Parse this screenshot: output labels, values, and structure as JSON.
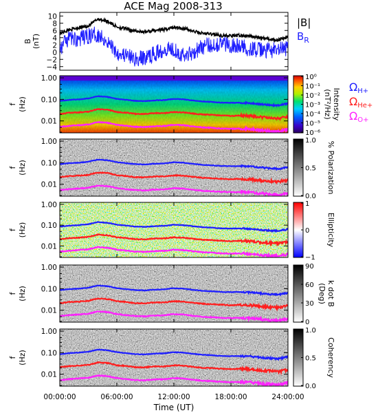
{
  "title": "ACE Mag 2008-313",
  "xlabel": "Time (UT)",
  "x_ticks": [
    "00:00:00",
    "06:00:00",
    "12:00:00",
    "18:00:00",
    "24:00:00"
  ],
  "colors": {
    "h_plus": "#1f1fff",
    "he_plus": "#ff1f1f",
    "o_plus": "#ff22ff",
    "br": "#1f1fff",
    "b_total": "#000000"
  },
  "chart_data": [
    {
      "type": "line",
      "panel": "magnetic field",
      "ylabel": "B",
      "yunit": "(nT)",
      "ylim": [
        -5,
        11
      ],
      "yticks": [
        "10",
        "8",
        "6",
        "4",
        "2",
        "0",
        "−2",
        "−4"
      ],
      "xlim": [
        "00:00",
        "24:00"
      ],
      "series": [
        {
          "name": "|B|",
          "x_hours": [
            0,
            1,
            2,
            3,
            4,
            5,
            6,
            7,
            8,
            9,
            10,
            11,
            12,
            13,
            14,
            15,
            16,
            17,
            18,
            19,
            20,
            21,
            22,
            23,
            24
          ],
          "values": [
            5.2,
            6.2,
            6.8,
            7.2,
            9.2,
            8.6,
            7.0,
            6.4,
            5.8,
            5.6,
            6.0,
            6.2,
            6.9,
            6.6,
            5.8,
            5.2,
            5.0,
            4.6,
            4.5,
            4.6,
            4.4,
            4.0,
            3.6,
            3.4,
            4.2
          ]
        },
        {
          "name": "B_R",
          "x_hours": [
            0,
            1,
            2,
            3,
            4,
            5,
            6,
            7,
            8,
            9,
            10,
            11,
            12,
            13,
            14,
            15,
            16,
            17,
            18,
            19,
            20,
            21,
            22,
            23,
            24
          ],
          "values": [
            1.0,
            4.0,
            3.5,
            4.5,
            5.0,
            3.0,
            0.0,
            -1.0,
            -2.0,
            -1.5,
            -0.5,
            1.0,
            1.0,
            -1.0,
            0.0,
            1.5,
            2.0,
            2.5,
            2.0,
            1.5,
            1.0,
            0.5,
            0.5,
            0.5,
            1.0
          ]
        }
      ]
    },
    {
      "type": "heatmap",
      "panel": "wave power spectrum",
      "ylabel": "f",
      "yunit": "(Hz)",
      "yscale": "log",
      "ylim": [
        0.003,
        1.0
      ],
      "yticks": [
        "1.00",
        "0.10",
        "0.01"
      ],
      "colorbar": {
        "label": "Intensity",
        "unit": "(nT²/Hz)",
        "scale": "log",
        "ticks": [
          "10⁰",
          "10⁻¹",
          "10⁻²",
          "10⁻³",
          "10⁻⁴",
          "10⁻⁵",
          "10⁻⁶"
        ]
      },
      "overlay_labels": [
        "Ω",
        "H+",
        "Ω",
        "He+",
        "Ω",
        "O+"
      ]
    },
    {
      "type": "heatmap",
      "panel": "polarization",
      "ylabel": "f",
      "yunit": "(Hz)",
      "yscale": "log",
      "yticks": [
        "1.00",
        "0.10",
        "0.01"
      ],
      "colorbar": {
        "label": "% Polarization",
        "ticks": [
          "1.0",
          "0.5",
          "0.0"
        ],
        "range": [
          0.0,
          1.0
        ]
      }
    },
    {
      "type": "heatmap",
      "panel": "ellipticity",
      "ylabel": "f",
      "yunit": "(Hz)",
      "yscale": "log",
      "yticks": [
        "1.00",
        "0.10",
        "0.01"
      ],
      "colorbar": {
        "label": "Ellipticity",
        "ticks": [
          "1",
          "0",
          "−1"
        ],
        "range": [
          -1,
          1
        ]
      }
    },
    {
      "type": "heatmap",
      "panel": "wave normal angle",
      "ylabel": "f",
      "yunit": "(Hz)",
      "yscale": "log",
      "yticks": [
        "1.00",
        "0.10",
        "0.01"
      ],
      "colorbar": {
        "label": "k dot B",
        "unit": "(Deg)",
        "ticks": [
          "90",
          "60",
          "30",
          "0"
        ],
        "range": [
          0,
          90
        ]
      }
    },
    {
      "type": "heatmap",
      "panel": "coherency",
      "ylabel": "f",
      "yunit": "(Hz)",
      "yscale": "log",
      "yticks": [
        "1.00",
        "0.10",
        "0.01"
      ],
      "colorbar": {
        "label": "Coherency",
        "ticks": [
          "1.0",
          "0.5",
          "0.0"
        ],
        "range": [
          0.0,
          1.0
        ]
      }
    }
  ],
  "gyrofrequency_lines": {
    "unit": "Hz",
    "x_hours": [
      0,
      1,
      2,
      3,
      4,
      5,
      6,
      7,
      8,
      9,
      10,
      11,
      12,
      13,
      14,
      15,
      16,
      17,
      18,
      19,
      20,
      21,
      22,
      23,
      24
    ],
    "h_plus": [
      0.085,
      0.095,
      0.1,
      0.11,
      0.14,
      0.13,
      0.105,
      0.095,
      0.085,
      0.083,
      0.09,
      0.093,
      0.105,
      0.1,
      0.088,
      0.08,
      0.076,
      0.07,
      0.069,
      0.07,
      0.067,
      0.061,
      0.055,
      0.052,
      0.064
    ],
    "he_plus": [
      0.021,
      0.024,
      0.025,
      0.027,
      0.035,
      0.033,
      0.026,
      0.024,
      0.021,
      0.021,
      0.023,
      0.023,
      0.026,
      0.025,
      0.022,
      0.02,
      0.019,
      0.018,
      0.017,
      0.018,
      0.017,
      0.015,
      0.014,
      0.013,
      0.016
    ],
    "o_plus": [
      0.0053,
      0.0059,
      0.0064,
      0.0068,
      0.0088,
      0.0082,
      0.0066,
      0.0059,
      0.0053,
      0.0052,
      0.0057,
      0.0058,
      0.0066,
      0.0063,
      0.0055,
      0.005,
      0.0048,
      0.0044,
      0.0043,
      0.0044,
      0.0042,
      0.0038,
      0.0034,
      0.0032,
      0.004
    ]
  }
}
